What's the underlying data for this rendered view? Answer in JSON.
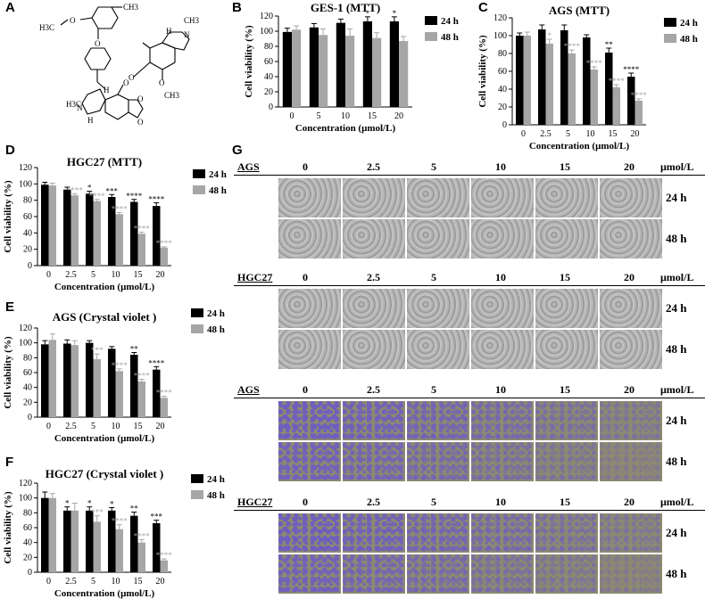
{
  "panels": {
    "A": {
      "label": "A"
    },
    "B": {
      "label": "B"
    },
    "C": {
      "label": "C"
    },
    "D": {
      "label": "D"
    },
    "E": {
      "label": "E"
    },
    "F": {
      "label": "F"
    },
    "G": {
      "label": "G"
    }
  },
  "structure": {
    "labels": [
      "H3C",
      "O",
      "CH3",
      "O",
      "O",
      "H3C",
      "N",
      "H",
      "O",
      "O",
      "O",
      "O",
      "CH3",
      "N",
      "H",
      "CH3",
      "H"
    ]
  },
  "chart_data": [
    {
      "id": "B",
      "type": "bar",
      "title": "GES-1 (MTT)",
      "categories": [
        "0",
        "5",
        "10",
        "15",
        "20"
      ],
      "xlabel": "Concentration (μmol/L)",
      "ylabel": "Cell viability (%)",
      "ylim": [
        0,
        120
      ],
      "yticks": [
        0,
        20,
        40,
        60,
        80,
        100,
        120
      ],
      "series": [
        {
          "name": "24 h",
          "color": "#000000",
          "values": [
            99,
            105,
            111,
            113,
            113
          ],
          "errors": [
            5,
            5,
            5,
            6,
            6
          ],
          "sig": [
            "",
            "",
            "",
            "*",
            "*"
          ]
        },
        {
          "name": "48 h",
          "color": "#a6a6a6",
          "values": [
            102,
            95,
            94,
            91,
            87
          ],
          "errors": [
            5,
            8,
            9,
            7,
            6
          ],
          "sig": [
            "",
            "",
            "",
            "",
            ""
          ]
        }
      ]
    },
    {
      "id": "C",
      "type": "bar",
      "title": "AGS (MTT)",
      "categories": [
        "0",
        "2.5",
        "5",
        "10",
        "15",
        "20"
      ],
      "xlabel": "Concentration (μmol/L)",
      "ylabel": "Cell viability (%)",
      "ylim": [
        0,
        120
      ],
      "yticks": [
        0,
        20,
        40,
        60,
        80,
        100,
        120
      ],
      "series": [
        {
          "name": "24 h",
          "color": "#000000",
          "values": [
            100,
            107,
            106,
            98,
            81,
            54
          ],
          "errors": [
            3,
            5,
            6,
            3,
            5,
            4
          ],
          "sig": [
            "",
            "",
            "",
            "",
            "**",
            "****"
          ]
        },
        {
          "name": "48 h",
          "color": "#a6a6a6",
          "values": [
            100,
            91,
            80,
            62,
            42,
            27
          ],
          "errors": [
            4,
            5,
            4,
            3,
            3,
            2
          ],
          "sig": [
            "",
            "*",
            "****",
            "****",
            "****",
            "****"
          ]
        }
      ]
    },
    {
      "id": "D",
      "type": "bar",
      "title": "HGC27 (MTT)",
      "categories": [
        "0",
        "2.5",
        "5",
        "10",
        "15",
        "20"
      ],
      "xlabel": "Concentration (μmol/L)",
      "ylabel": "Cell viability (%)",
      "ylim": [
        0,
        120
      ],
      "yticks": [
        0,
        20,
        40,
        60,
        80,
        100,
        120
      ],
      "series": [
        {
          "name": "24 h",
          "color": "#000000",
          "values": [
            99,
            93,
            88,
            84,
            78,
            73
          ],
          "errors": [
            3,
            3,
            3,
            3,
            3,
            4
          ],
          "sig": [
            "",
            "",
            "*",
            "***",
            "****",
            "****"
          ]
        },
        {
          "name": "48 h",
          "color": "#a6a6a6",
          "values": [
            98,
            86,
            79,
            63,
            39,
            22
          ],
          "errors": [
            3,
            2,
            2,
            2,
            2,
            1
          ],
          "sig": [
            "",
            "****",
            "****",
            "****",
            "****",
            "****"
          ]
        }
      ]
    },
    {
      "id": "E",
      "type": "bar",
      "title": "AGS (Crystal violet )",
      "categories": [
        "0",
        "2.5",
        "5",
        "10",
        "15",
        "20"
      ],
      "xlabel": "Concentration (μmol/L)",
      "ylabel": "Cell viability (%)",
      "ylim": [
        0,
        120
      ],
      "yticks": [
        0,
        20,
        40,
        60,
        80,
        100,
        120
      ],
      "series": [
        {
          "name": "24 h",
          "color": "#000000",
          "values": [
            98,
            99,
            100,
            92,
            84,
            64
          ],
          "errors": [
            5,
            5,
            3,
            3,
            3,
            4
          ],
          "sig": [
            "",
            "",
            "",
            "",
            "**",
            "****"
          ]
        },
        {
          "name": "48 h",
          "color": "#a6a6a6",
          "values": [
            104,
            97,
            78,
            62,
            48,
            26
          ],
          "errors": [
            8,
            6,
            7,
            3,
            3,
            2
          ],
          "sig": [
            "",
            "",
            "***",
            "****",
            "****",
            "****"
          ]
        }
      ]
    },
    {
      "id": "F",
      "type": "bar",
      "title": "HGC27 (Crystal violet )",
      "categories": [
        "0",
        "2.5",
        "5",
        "10",
        "15",
        "20"
      ],
      "xlabel": "Concentration (μmol/L)",
      "ylabel": "Cell viability (%)",
      "ylim": [
        0,
        120
      ],
      "yticks": [
        0,
        20,
        40,
        60,
        80,
        100,
        120
      ],
      "series": [
        {
          "name": "24 h",
          "color": "#000000",
          "values": [
            100,
            83,
            83,
            83,
            76,
            66
          ],
          "errors": [
            8,
            5,
            5,
            4,
            5,
            4
          ],
          "sig": [
            "",
            "*",
            "*",
            "*",
            "**",
            "***"
          ]
        },
        {
          "name": "48 h",
          "color": "#a6a6a6",
          "values": [
            100,
            83,
            68,
            58,
            40,
            16
          ],
          "errors": [
            6,
            10,
            8,
            6,
            4,
            2
          ],
          "sig": [
            "",
            "",
            "***",
            "****",
            "****",
            "****"
          ]
        }
      ]
    }
  ],
  "micrographs": {
    "unit": "μmol/L",
    "concentrations": [
      "0",
      "2.5",
      "5",
      "10",
      "15",
      "20"
    ],
    "times": [
      "24 h",
      "48 h"
    ],
    "groups": [
      {
        "label": "AGS",
        "stain": "phase"
      },
      {
        "label": "HGC27",
        "stain": "phase"
      },
      {
        "label": "AGS",
        "stain": "crystal-violet"
      },
      {
        "label": "HGC27",
        "stain": "crystal-violet"
      }
    ]
  }
}
